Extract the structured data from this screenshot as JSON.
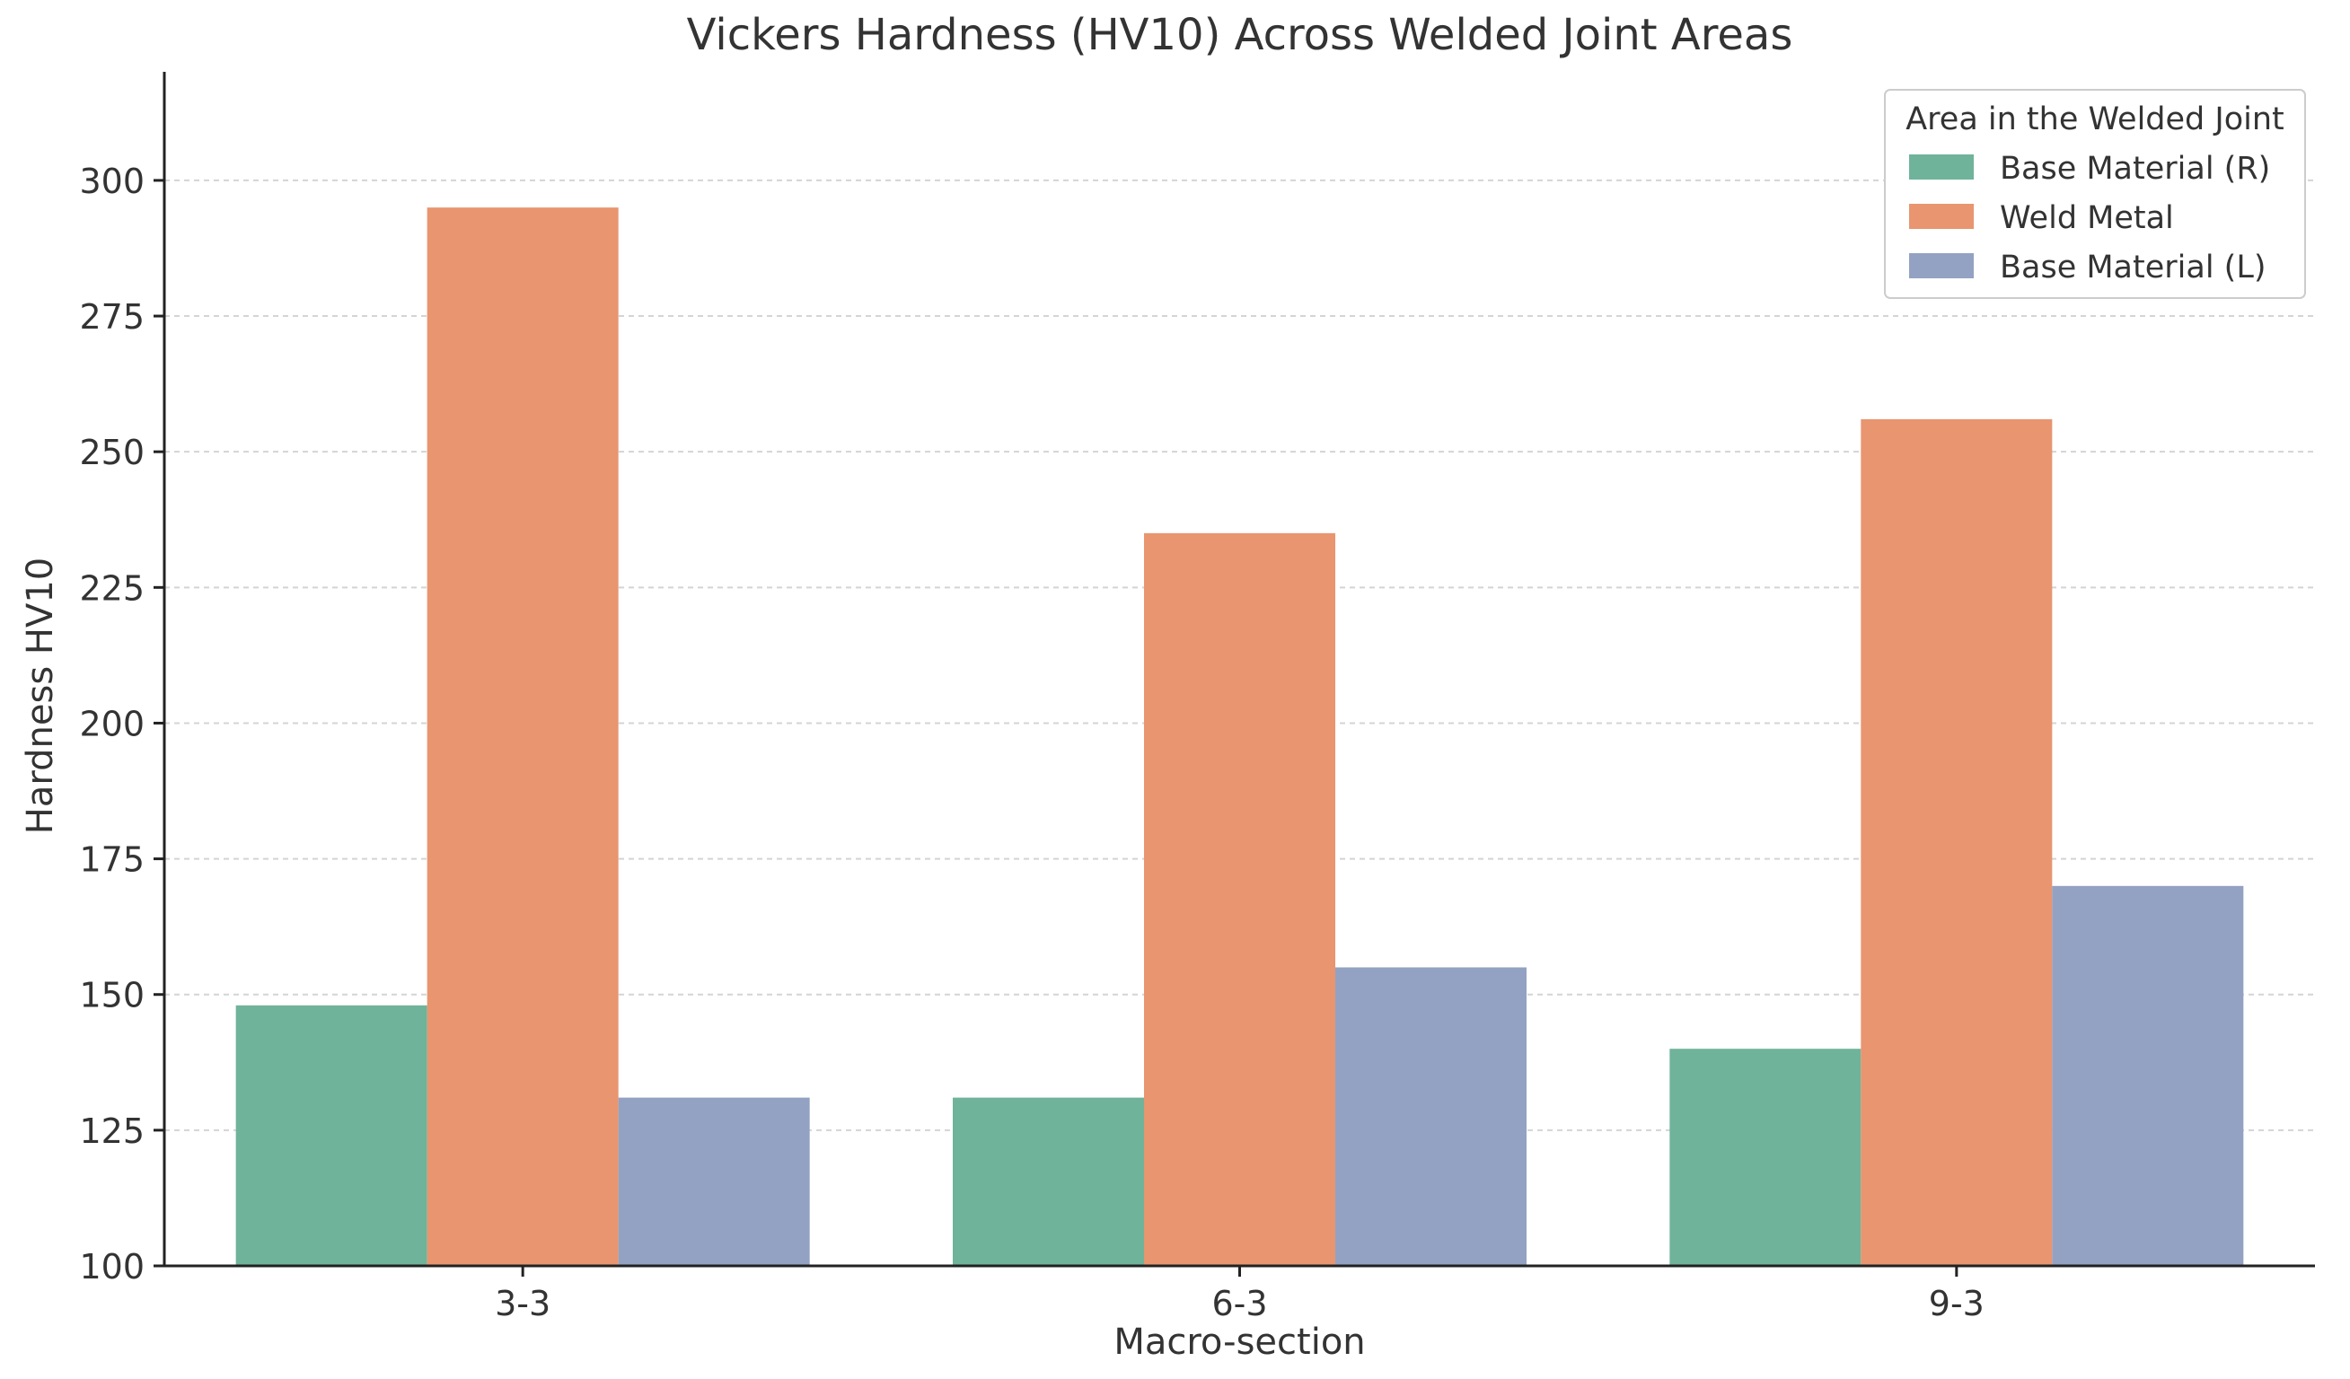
{
  "chart_data": {
    "type": "bar",
    "title": "Vickers Hardness (HV10) Across Welded Joint Areas",
    "xlabel": "Macro-section",
    "ylabel": "Hardness HV10",
    "categories": [
      "3-3",
      "6-3",
      "9-3"
    ],
    "ylim": [
      100,
      320
    ],
    "yticks": [
      100,
      125,
      150,
      175,
      200,
      225,
      250,
      275,
      300
    ],
    "grid": true,
    "legend": {
      "title": "Area in the Welded Joint",
      "placement": "top-right"
    },
    "series": [
      {
        "name": "Base Material (R)",
        "color": "#6fb39b",
        "values": [
          148,
          131,
          140
        ]
      },
      {
        "name": "Weld Metal",
        "color": "#e89570",
        "values": [
          295,
          235,
          256
        ]
      },
      {
        "name": "Base Material (L)",
        "color": "#93a2c2",
        "values": [
          131,
          155,
          170
        ]
      }
    ]
  },
  "colors": {
    "axis": "#222222",
    "grid": "#d4d4d4",
    "text": "#333333",
    "legend_border": "#cccccc"
  }
}
